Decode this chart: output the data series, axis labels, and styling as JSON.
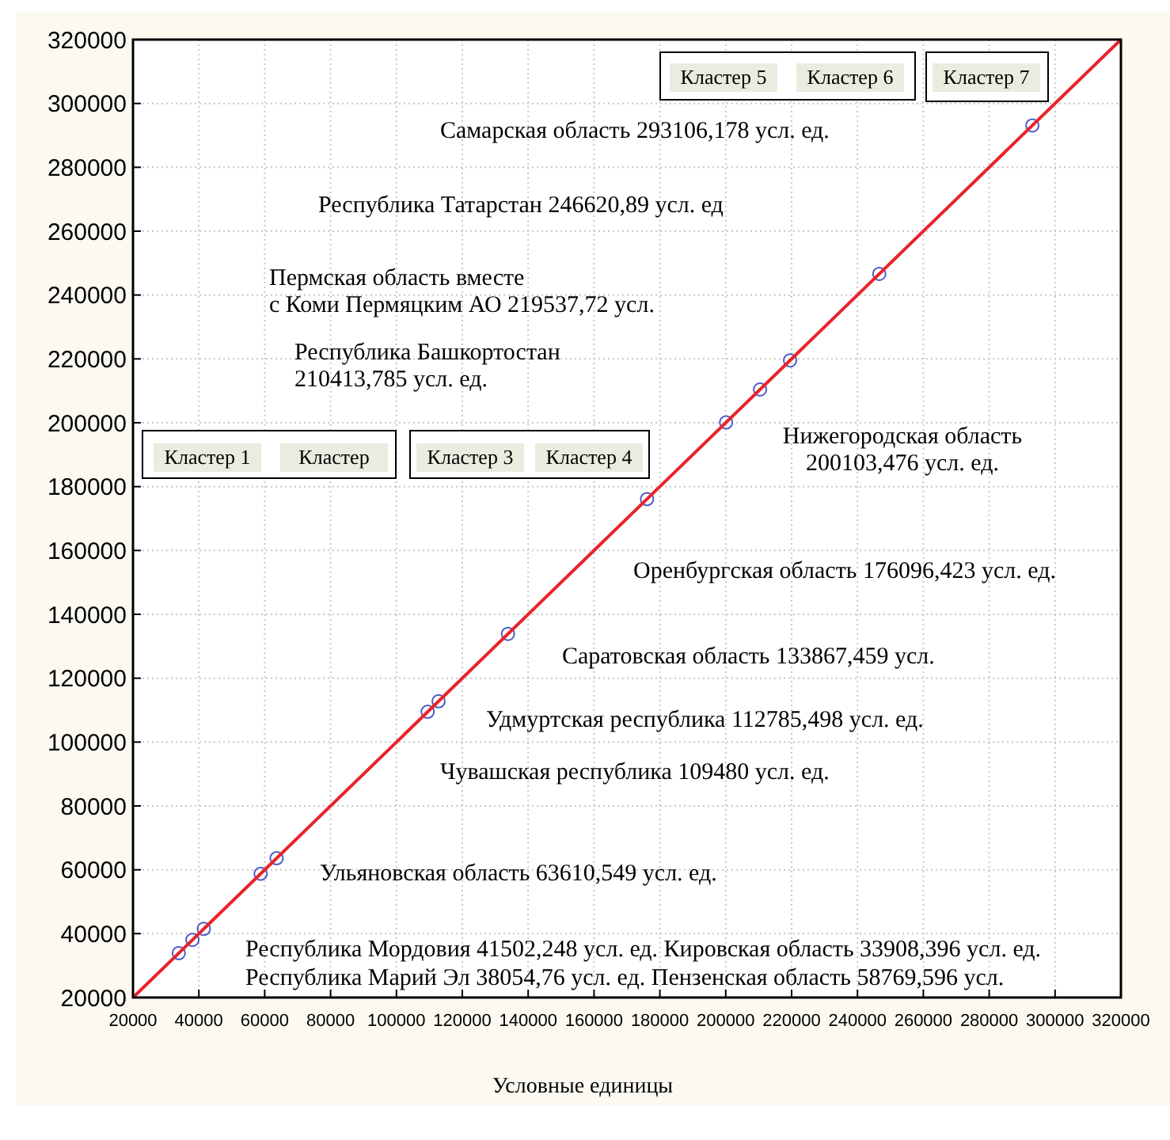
{
  "chart_data": {
    "type": "scatter",
    "xlabel": "Условные единицы",
    "x": [
      33908.396,
      38054.76,
      41502.248,
      58769.596,
      63610.549,
      109480,
      112785.498,
      133867.459,
      176096.423,
      200103.476,
      210413.785,
      219537.72,
      246620.89,
      293106.178
    ],
    "series": [
      {
        "type": "scatter",
        "color": "#4b5cc4",
        "marker": "circle",
        "values": [
          33908.396,
          38054.76,
          41502.248,
          58769.596,
          63610.549,
          109480,
          112785.498,
          133867.459,
          176096.423,
          200103.476,
          210413.785,
          219537.72,
          246620.89,
          293106.178
        ]
      },
      {
        "type": "line",
        "color": "#e8232a",
        "x": [
          20000,
          320000
        ],
        "values": [
          20000,
          320000
        ],
        "line_style": "solid",
        "marker": "none"
      }
    ],
    "xlim": [
      20000,
      320000
    ],
    "ylim": [
      20000,
      320000
    ],
    "xticks": [
      20000,
      40000,
      60000,
      80000,
      100000,
      120000,
      140000,
      160000,
      180000,
      200000,
      220000,
      240000,
      260000,
      280000,
      300000,
      320000
    ],
    "yticks": [
      20000,
      40000,
      60000,
      80000,
      100000,
      120000,
      140000,
      160000,
      180000,
      200000,
      220000,
      240000,
      260000,
      280000,
      300000,
      320000
    ],
    "grid": true,
    "annotations": [
      "Кластер 5",
      "Кластер 6",
      "Кластер 7",
      "Самарская область 293106,178 усл. ед.",
      "Республика Татарстан 246620,89 усл. ед",
      "Пермская область вместе\nс Коми Пермяцким АО 219537,72 усл.",
      "Республика Башкортостан\n210413,785 усл. ед.",
      "Кластер 1",
      "Кластер",
      "Кластер 3",
      "Кластер 4",
      "Нижегородская область\n200103,476 усл. ед.",
      "Оренбургская область 176096,423 усл. ед.",
      "Саратовская область 133867,459 усл.",
      "Удмуртская республика 112785,498 усл. ед.",
      "Чувашская республика 109480 усл. ед.",
      "Ульяновская область 63610,549 усл. ед.",
      "Республика Мордовия 41502,248 усл. ед. Кировская область 33908,396 усл. ед.",
      "Республика Марий Эл 38054,76 усл. ед. Пензенская область 58769,596 усл."
    ]
  }
}
